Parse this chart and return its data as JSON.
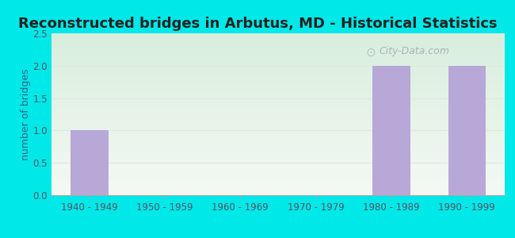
{
  "title": "Reconstructed bridges in Arbutus, MD - Historical Statistics",
  "categories": [
    "1940 - 1949",
    "1950 - 1959",
    "1960 - 1969",
    "1970 - 1979",
    "1980 - 1989",
    "1990 - 1999"
  ],
  "values": [
    1,
    0,
    0,
    0,
    2,
    2
  ],
  "bar_color": "#b8a8d8",
  "ylabel": "number of bridges",
  "ylim": [
    0,
    2.5
  ],
  "yticks": [
    0,
    0.5,
    1,
    1.5,
    2,
    2.5
  ],
  "background_color": "#00e8e8",
  "plot_bg_top": "#f4f9f4",
  "plot_bg_bottom": "#d8eedd",
  "grid_color": "#e0e8e0",
  "watermark": "City-Data.com",
  "title_fontsize": 13,
  "ylabel_fontsize": 9,
  "tick_color": "#555566",
  "ylabel_color": "#336688"
}
